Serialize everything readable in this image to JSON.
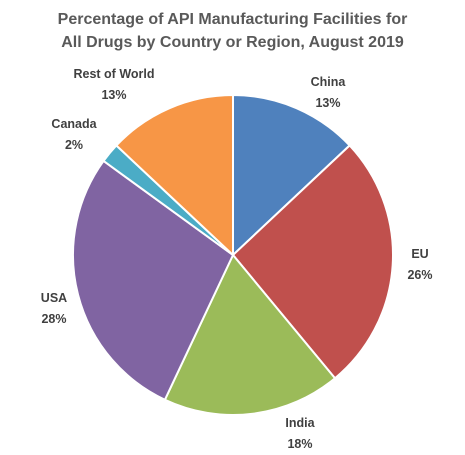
{
  "chart_data": {
    "type": "pie",
    "title_lines": [
      "Percentage of API Manufacturing Facilities for",
      "All Drugs by Country or Region, August 2019"
    ],
    "slices": [
      {
        "name": "China",
        "value": 13,
        "label": "13%",
        "color": "#4F81BD"
      },
      {
        "name": "EU",
        "value": 26,
        "label": "26%",
        "color": "#C0504D"
      },
      {
        "name": "India",
        "value": 18,
        "label": "18%",
        "color": "#9BBB59"
      },
      {
        "name": "USA",
        "value": 28,
        "label": "28%",
        "color": "#8064A2"
      },
      {
        "name": "Canada",
        "value": 2,
        "label": "2%",
        "color": "#4BACC6"
      },
      {
        "name": "Rest of World",
        "value": 13,
        "label": "13%",
        "color": "#F79646"
      }
    ],
    "start": "12 o'clock, clockwise",
    "legend": "none (data labels)"
  }
}
